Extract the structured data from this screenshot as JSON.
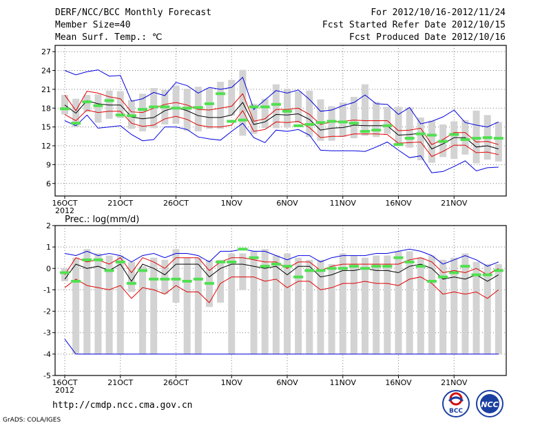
{
  "header": {
    "title": "DERF/NCC/BCC Monthly Forecast",
    "member_size": "Member Size=40",
    "variable": "Mean Surf. Temp.: ℃",
    "forecast_period": "For 2012/10/16-2012/11/24",
    "start_date": "Fcst Started Refer Date 2012/10/15",
    "produced_date": "Fcst Produced Date 2012/10/16"
  },
  "footer": {
    "url": "http://cmdp.ncc.cma.gov.cn",
    "credit": "GrADS: COLA/IGES",
    "logo1_text": "BCC",
    "logo2_text": "NCC"
  },
  "colors": {
    "box": "#d3d3d3",
    "mean": "#50e050",
    "median": "#000000",
    "quartile": "#e00000",
    "extreme": "#0000e0"
  },
  "chart_data": [
    {
      "type": "box-plot",
      "title": "Mean Surf. Temp.: ℃",
      "xlabel": "",
      "ylabel": "℃",
      "ylim": [
        4,
        28
      ],
      "yticks": [
        6,
        9,
        12,
        15,
        18,
        21,
        24,
        27
      ],
      "x_tick_days": [
        0,
        5,
        10,
        15,
        20,
        25,
        30,
        35
      ],
      "x_tick_labels": [
        "16OCT",
        "21OCT",
        "26OCT",
        "1NOV",
        "6NOV",
        "11NOV",
        "16NOV",
        "21NOV"
      ],
      "x_year_label": "2012",
      "grid": true,
      "box_low": [
        17.0,
        15.0,
        17.4,
        15.7,
        16.3,
        16.4,
        14.7,
        14.3,
        14.8,
        15.4,
        15.5,
        14.4,
        14.3,
        14.7,
        14.7,
        16.8,
        13.6,
        13.9,
        14.8,
        14.8,
        14.9,
        15.6,
        13.4,
        12.8,
        12.8,
        13.4,
        13.2,
        13.6,
        13.4,
        13.9,
        12.2,
        11.7,
        9.7,
        9.3,
        10.2,
        9.9,
        10.6,
        9.2,
        9.8,
        9.5
      ],
      "box_high": [
        20.1,
        19.5,
        20.1,
        20.2,
        20.8,
        20.7,
        19.3,
        20.3,
        21.2,
        20.9,
        21.6,
        21.1,
        21.4,
        21.2,
        22.2,
        22.5,
        24.1,
        18.7,
        19.5,
        21.8,
        21.1,
        20.7,
        20.8,
        19.4,
        18.3,
        18.9,
        19.8,
        21.8,
        19.0,
        18.2,
        18.2,
        18.1,
        16.5,
        16.0,
        15.4,
        15.9,
        16.1,
        17.6,
        16.9,
        15.8
      ],
      "mean": [
        17.9,
        15.6,
        19.0,
        18.4,
        19.2,
        16.9,
        16.8,
        17.8,
        18.2,
        18.2,
        18.0,
        18.0,
        18.1,
        18.7,
        20.3,
        15.9,
        16.1,
        18.2,
        18.2,
        18.6,
        17.5,
        15.2,
        15.4,
        15.7,
        15.9,
        15.8,
        15.6,
        14.3,
        14.5,
        15.2,
        12.2,
        13.2,
        13.9,
        13.7,
        12.7,
        13.8,
        13.0,
        13.2,
        13.3,
        13.2
      ],
      "median": [
        18.5,
        17.2,
        19.2,
        18.7,
        18.5,
        18.5,
        16.6,
        16.3,
        16.5,
        17.6,
        18.1,
        17.6,
        16.8,
        16.5,
        16.5,
        16.9,
        18.9,
        15.4,
        15.8,
        17.0,
        16.9,
        17.1,
        16.2,
        14.5,
        14.8,
        14.9,
        15.3,
        15.2,
        15.2,
        15.2,
        13.7,
        13.8,
        14.0,
        11.5,
        12.3,
        13.3,
        13.3,
        11.8,
        12.0,
        11.5
      ],
      "p_upper": [
        20.1,
        17.6,
        20.7,
        20.4,
        19.8,
        19.5,
        17.4,
        17.3,
        18.0,
        18.6,
        18.9,
        18.5,
        17.8,
        17.7,
        18.0,
        18.3,
        20.3,
        15.9,
        16.3,
        17.8,
        17.8,
        18.0,
        17.0,
        15.4,
        15.8,
        15.9,
        16.1,
        16.0,
        16.0,
        16.0,
        14.4,
        14.5,
        14.8,
        12.2,
        13.0,
        14.1,
        14.1,
        12.6,
        12.7,
        12.2
      ],
      "p_lower": [
        17.0,
        16.0,
        17.7,
        17.3,
        17.5,
        17.5,
        15.6,
        15.1,
        15.3,
        16.3,
        16.7,
        16.2,
        15.3,
        15.0,
        15.0,
        15.3,
        17.6,
        14.3,
        14.6,
        15.8,
        15.7,
        15.9,
        14.9,
        13.3,
        13.5,
        13.5,
        13.9,
        13.9,
        13.9,
        13.8,
        12.4,
        12.5,
        12.6,
        10.3,
        11.1,
        12.1,
        12.1,
        10.9,
        11.0,
        10.6
      ],
      "max": [
        24.0,
        23.3,
        23.8,
        24.1,
        23.1,
        23.2,
        19.1,
        19.5,
        20.5,
        20.0,
        22.1,
        21.6,
        20.4,
        21.3,
        21.0,
        21.3,
        22.9,
        17.8,
        19.3,
        20.8,
        20.4,
        20.9,
        19.4,
        17.5,
        17.7,
        18.4,
        18.9,
        20.1,
        18.7,
        18.6,
        17.0,
        18.1,
        15.5,
        15.9,
        16.6,
        17.7,
        15.7,
        15.3,
        15.0,
        15.8
      ],
      "min": [
        16.0,
        15.2,
        16.9,
        14.8,
        15.0,
        15.2,
        13.8,
        12.8,
        13.0,
        15.0,
        15.0,
        14.6,
        13.4,
        13.1,
        12.9,
        14.3,
        15.6,
        13.3,
        12.5,
        14.5,
        14.3,
        14.6,
        13.7,
        11.3,
        11.2,
        11.2,
        11.2,
        11.1,
        11.8,
        12.6,
        11.3,
        10.1,
        10.4,
        7.7,
        7.9,
        8.7,
        9.6,
        8.0,
        8.5,
        8.6
      ]
    },
    {
      "type": "box-plot",
      "title": "Prec.: log(mm/d)",
      "xlabel": "",
      "ylabel": "log(mm/d)",
      "ylim": [
        -5,
        2
      ],
      "yticks": [
        -5,
        -4,
        -3,
        -2,
        -1,
        0,
        1,
        2
      ],
      "x_tick_days": [
        0,
        5,
        10,
        15,
        20,
        25,
        30,
        35
      ],
      "x_tick_labels": [
        "16OCT",
        "21OCT",
        "26OCT",
        "1NOV",
        "6NOV",
        "11NOV",
        "16NOV",
        "21NOV"
      ],
      "x_year_label": "2012",
      "grid": true,
      "box_low": [
        -0.6,
        -4.0,
        -4.0,
        -4.0,
        -4.0,
        -4.0,
        -1.1,
        -4.0,
        -4.0,
        -1.2,
        -1.6,
        -4.0,
        -4.0,
        -1.8,
        -1.6,
        -4.0,
        -1.0,
        -4.0,
        -4.0,
        -4.0,
        -4.0,
        -4.0,
        -4.0,
        -4.0,
        -4.0,
        -4.0,
        -4.0,
        -4.0,
        -4.0,
        -4.0,
        -4.0,
        -4.0,
        -4.0,
        -4.0,
        -4.0,
        -4.0,
        -4.0,
        -4.0,
        -4.0,
        -4.0
      ],
      "box_high": [
        0.0,
        0.5,
        0.9,
        0.7,
        0.6,
        0.6,
        0.3,
        0.1,
        0.5,
        0.4,
        0.9,
        0.5,
        0.5,
        0.4,
        0.4,
        0.7,
        0.7,
        0.8,
        0.9,
        0.6,
        0.7,
        0.5,
        0.4,
        0.4,
        0.2,
        0.7,
        0.6,
        0.5,
        0.6,
        0.6,
        0.8,
        0.8,
        0.5,
        0.6,
        0.4,
        0.5,
        0.7,
        0.3,
        0.2,
        0.2
      ],
      "mean": [
        -0.2,
        -0.6,
        0.4,
        0.4,
        -0.1,
        0.3,
        -0.7,
        -0.1,
        -0.5,
        -0.5,
        -0.5,
        -0.6,
        -0.5,
        -0.7,
        0.3,
        0.3,
        0.9,
        0.5,
        0.1,
        0.2,
        0.1,
        -0.4,
        -0.1,
        -0.1,
        0.0,
        0.0,
        0.1,
        0.0,
        0.1,
        0.1,
        0.5,
        0.3,
        0.1,
        -0.6,
        -0.4,
        -0.2,
        0.1,
        -0.3,
        -0.3,
        -0.1
      ],
      "median": [
        -0.5,
        0.2,
        0.0,
        0.1,
        -0.1,
        0.2,
        -0.6,
        0.2,
        0.0,
        -0.3,
        0.2,
        0.2,
        0.2,
        -0.4,
        0.0,
        0.2,
        0.2,
        0.1,
        0.0,
        0.1,
        -0.3,
        0.1,
        0.1,
        -0.4,
        -0.3,
        -0.1,
        -0.1,
        0.0,
        -0.1,
        -0.1,
        -0.2,
        0.1,
        0.2,
        0.0,
        -0.5,
        -0.4,
        -0.5,
        -0.3,
        -0.6,
        -0.3
      ],
      "p_upper": [
        -0.3,
        0.5,
        0.3,
        0.4,
        0.2,
        0.5,
        -0.2,
        0.5,
        0.3,
        0.0,
        0.5,
        0.5,
        0.5,
        -0.1,
        0.3,
        0.5,
        0.5,
        0.4,
        0.3,
        0.3,
        0.0,
        0.3,
        0.3,
        -0.1,
        0.1,
        0.2,
        0.2,
        0.2,
        0.2,
        0.2,
        0.2,
        0.4,
        0.5,
        0.3,
        -0.2,
        -0.1,
        -0.2,
        0.0,
        -0.3,
        0.0
      ],
      "p_lower": [
        -0.9,
        -0.5,
        -0.8,
        -0.9,
        -1.0,
        -0.8,
        -1.4,
        -0.9,
        -1.0,
        -1.2,
        -0.8,
        -1.1,
        -1.1,
        -1.6,
        -0.7,
        -0.4,
        -0.4,
        -0.4,
        -0.6,
        -0.5,
        -0.9,
        -0.6,
        -0.6,
        -1.0,
        -0.9,
        -0.7,
        -0.7,
        -0.6,
        -0.7,
        -0.7,
        -0.8,
        -0.5,
        -0.4,
        -0.7,
        -1.2,
        -1.1,
        -1.2,
        -1.1,
        -1.4,
        -1.0
      ],
      "max": [
        0.7,
        0.6,
        0.8,
        0.6,
        0.7,
        0.6,
        0.3,
        0.6,
        0.7,
        0.5,
        0.7,
        0.7,
        0.6,
        0.3,
        0.8,
        0.8,
        0.9,
        0.8,
        0.8,
        0.6,
        0.4,
        0.6,
        0.6,
        0.3,
        0.5,
        0.6,
        0.6,
        0.6,
        0.7,
        0.7,
        0.8,
        0.9,
        0.8,
        0.6,
        0.2,
        0.4,
        0.6,
        0.4,
        0.1,
        0.3
      ],
      "min": [
        -3.3,
        -4.0,
        -4.0,
        -4.0,
        -4.0,
        -4.0,
        -4.0,
        -4.0,
        -4.0,
        -4.0,
        -4.0,
        -4.0,
        -4.0,
        -4.0,
        -4.0,
        -4.0,
        -4.0,
        -4.0,
        -4.0,
        -4.0,
        -4.0,
        -4.0,
        -4.0,
        -4.0,
        -4.0,
        -4.0,
        -4.0,
        -4.0,
        -4.0,
        -4.0,
        -4.0,
        -4.0,
        -4.0,
        -4.0,
        -4.0,
        -4.0,
        -4.0,
        -4.0,
        -4.0,
        -4.0
      ]
    }
  ]
}
